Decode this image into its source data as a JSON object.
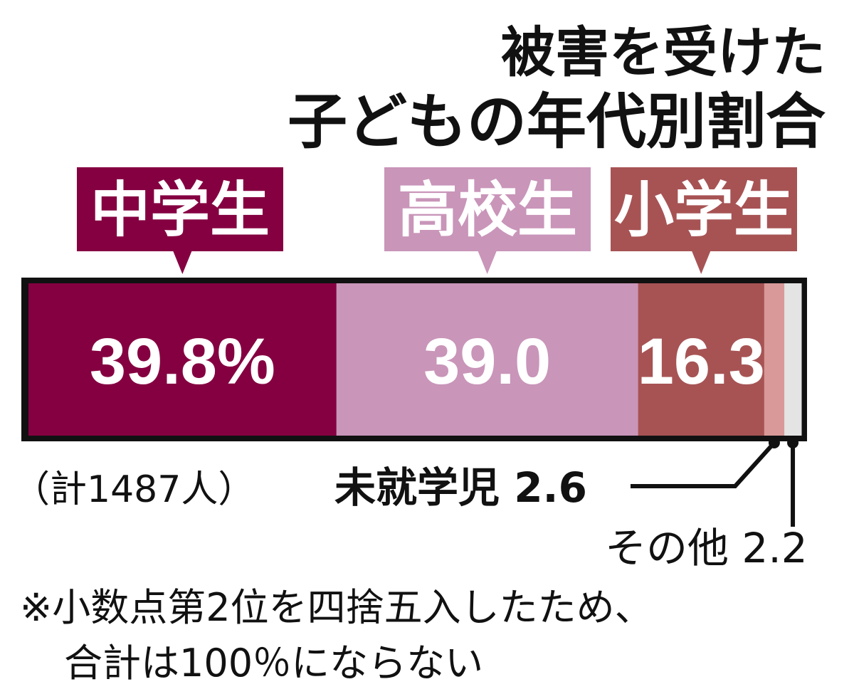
{
  "chart_data": {
    "type": "bar",
    "orientation": "horizontal-stacked",
    "title_line1": "被害を受けた",
    "title_line2": "子どもの年代別割合",
    "unit": "%",
    "total_note": "（計1487人）",
    "footnote_line1": "※小数点第2位を四捨五入したため、",
    "footnote_line2": "合計は100％にならない",
    "segments": [
      {
        "name": "中学生",
        "value": 39.8,
        "label": "39.8%",
        "color": "#850041"
      },
      {
        "name": "高校生",
        "value": 39.0,
        "label": "39.0",
        "color": "#c995b9"
      },
      {
        "name": "小学生",
        "value": 16.3,
        "label": "16.3",
        "color": "#a75354"
      },
      {
        "name": "未就学児",
        "value": 2.6,
        "label": "2.6",
        "color": "#d99999"
      },
      {
        "name": "その他",
        "value": 2.2,
        "label": "2.2",
        "color": "#e4e4e4"
      }
    ],
    "border_color": "#111111"
  }
}
